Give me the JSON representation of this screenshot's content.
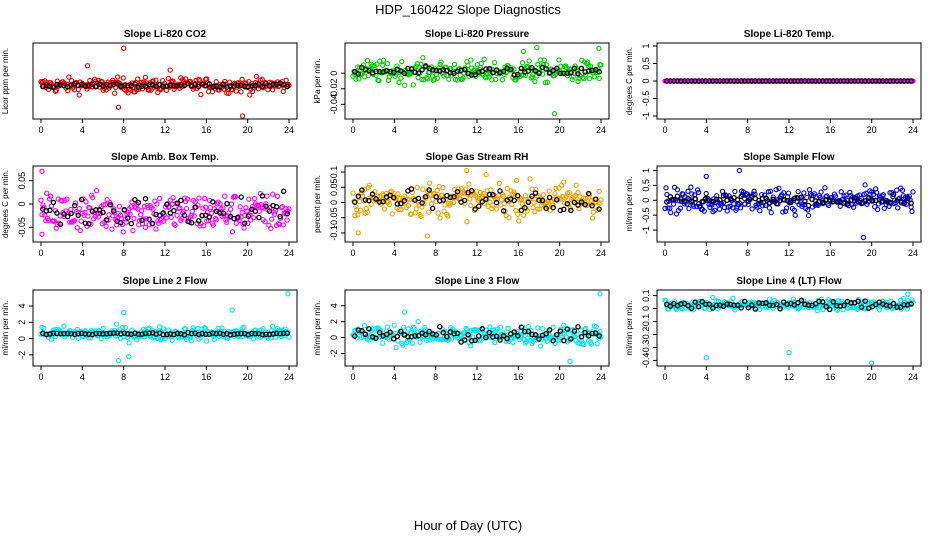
{
  "page": {
    "title": "HDP_160422  Slope Diagnostics",
    "xlabel": "Hour of Day (UTC)"
  },
  "colors": {
    "black": "#000000",
    "red": "#e00000",
    "green": "#00cc00",
    "magenta": "#ff00ff",
    "orange": "#f0a000",
    "blue": "#0000dd",
    "cyan": "#00e5ee"
  },
  "chart_data": [
    {
      "type": "scatter",
      "title": "Slope Li-820 CO2",
      "ylabel": "Licor ppm per min.",
      "xlim": [
        0,
        24
      ],
      "ylim": [
        -7,
        9
      ],
      "xticks": [
        0,
        4,
        8,
        12,
        16,
        20,
        24
      ],
      "yticks": [],
      "color": "red",
      "center": 0,
      "spread": 1.2,
      "black_spread": 0.3,
      "outliers": [
        [
          8,
          8.5
        ],
        [
          19.5,
          -7
        ],
        [
          7.5,
          -5
        ],
        [
          4.5,
          4.5
        ],
        [
          12.5,
          3.5
        ]
      ]
    },
    {
      "type": "scatter",
      "title": "Slope Li-820 Pressure",
      "ylabel": "kPa per min.",
      "xlim": [
        0,
        24
      ],
      "ylim": [
        -0.055,
        0.035
      ],
      "xticks": [
        0,
        4,
        8,
        12,
        16,
        20,
        24
      ],
      "yticks": [
        -0.04,
        -0.02,
        0.0
      ],
      "color": "green",
      "center": 0.002,
      "spread": 0.01,
      "black_spread": 0.004,
      "outliers": [
        [
          19.5,
          -0.052
        ],
        [
          17.8,
          0.033
        ],
        [
          23.8,
          0.032
        ],
        [
          16.5,
          0.028
        ]
      ]
    },
    {
      "type": "scatter",
      "title": "Slope Li-820 Temp.",
      "ylabel": "degrees C per min.",
      "xlim": [
        0,
        24
      ],
      "ylim": [
        -1,
        1
      ],
      "xticks": [
        0,
        4,
        8,
        12,
        16,
        20,
        24
      ],
      "yticks": [
        -1.0,
        -0.5,
        0.0,
        0.5,
        1.0
      ],
      "color": "magenta",
      "center": 0,
      "spread": 0,
      "black_spread": 0,
      "outliers": []
    },
    {
      "type": "scatter",
      "title": "Slope Amb. Box Temp.",
      "ylabel": "degrees C per min.",
      "xlim": [
        0,
        24
      ],
      "ylim": [
        -0.075,
        0.075
      ],
      "xticks": [
        0,
        4,
        8,
        12,
        16,
        20,
        24
      ],
      "yticks": [
        -0.05,
        0.0,
        0.05
      ],
      "color": "magenta",
      "center": -0.018,
      "spread": 0.03,
      "black_spread": 0.025,
      "outliers": [
        [
          0.1,
          0.07
        ],
        [
          0.1,
          -0.065
        ]
      ]
    },
    {
      "type": "scatter",
      "title": "Slope Gas Stream RH",
      "ylabel": "percent per min.",
      "xlim": [
        0,
        24
      ],
      "ylim": [
        -0.12,
        0.11
      ],
      "xticks": [
        0,
        4,
        8,
        12,
        16,
        20,
        24
      ],
      "yticks": [
        -0.1,
        -0.05,
        0.0,
        0.05,
        0.1
      ],
      "color": "orange",
      "center": 0.01,
      "spread": 0.04,
      "black_spread": 0.025,
      "outliers": [
        [
          11,
          0.105
        ],
        [
          7.2,
          -0.11
        ],
        [
          0.5,
          -0.1
        ]
      ]
    },
    {
      "type": "scatter",
      "title": "Slope Sample Flow",
      "ylabel": "ml/min per min.",
      "xlim": [
        0,
        24
      ],
      "ylim": [
        -1.3,
        1.05
      ],
      "xticks": [
        0,
        4,
        8,
        12,
        16,
        20,
        24
      ],
      "yticks": [
        -1.0,
        -0.5,
        0.0,
        0.5,
        1.0
      ],
      "color": "blue",
      "center": 0,
      "spread": 0.3,
      "black_spread": 0.1,
      "outliers": [
        [
          19.2,
          -1.25
        ],
        [
          7.2,
          1.0
        ],
        [
          4,
          0.8
        ]
      ]
    },
    {
      "type": "scatter",
      "title": "Slope Line 2 Flow",
      "ylabel": "ml/min per min.",
      "xlim": [
        0,
        24
      ],
      "ylim": [
        -3,
        5.6
      ],
      "xticks": [
        0,
        4,
        8,
        12,
        16,
        20,
        24
      ],
      "yticks": [
        -2,
        0,
        2,
        4
      ],
      "color": "cyan",
      "center": 0.6,
      "spread": 0.6,
      "black_spread": 0.1,
      "outliers": [
        [
          23.9,
          5.5
        ],
        [
          7.5,
          -2.7
        ],
        [
          8,
          3.2
        ],
        [
          18.5,
          3.5
        ],
        [
          8.5,
          -2.2
        ]
      ]
    },
    {
      "type": "scatter",
      "title": "Slope Line 3 Flow",
      "ylabel": "ml/min per min.",
      "xlim": [
        0,
        24
      ],
      "ylim": [
        -3.2,
        5.6
      ],
      "xticks": [
        0,
        4,
        8,
        12,
        16,
        20,
        24
      ],
      "yticks": [
        -2,
        0,
        2,
        4
      ],
      "color": "cyan",
      "center": 0.3,
      "spread": 0.9,
      "black_spread": 0.7,
      "outliers": [
        [
          23.9,
          5.5
        ],
        [
          21,
          -3
        ],
        [
          5,
          3.2
        ]
      ]
    },
    {
      "type": "scatter",
      "title": "Slope Line 4 (LT) Flow",
      "ylabel": "ml/min per min.",
      "xlim": [
        0,
        24
      ],
      "ylim": [
        -0.42,
        0.12
      ],
      "xticks": [
        0,
        4,
        8,
        12,
        16,
        20,
        24
      ],
      "yticks": [
        -0.4,
        -0.3,
        -0.2,
        -0.1,
        0.0,
        0.1
      ],
      "color": "cyan",
      "center": 0.03,
      "spread": 0.03,
      "black_spread": 0.025,
      "outliers": [
        [
          4,
          -0.38
        ],
        [
          12,
          -0.34
        ],
        [
          20,
          -0.42
        ],
        [
          23.5,
          0.11
        ]
      ]
    }
  ]
}
